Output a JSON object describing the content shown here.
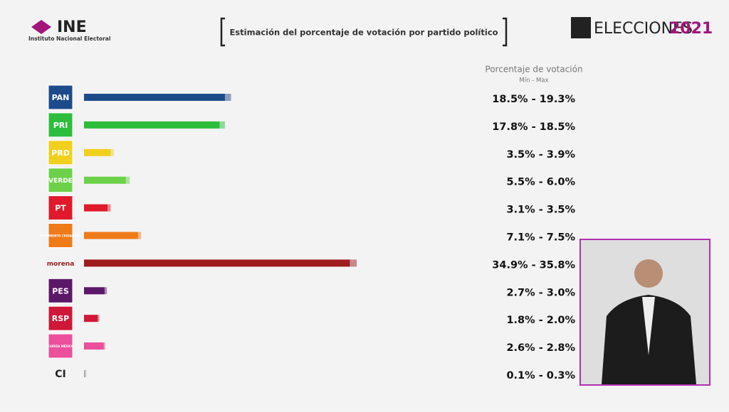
{
  "header": {
    "logo": "INE",
    "logo_subtitle": "Instituto Nacional Electoral",
    "brand": "ELECCIONES",
    "brand_year": "2021"
  },
  "chart_data": {
    "type": "range_bar",
    "title": "Estimación del porcentaje de votación por partido político",
    "column_title": "Porcentaje de votación",
    "column_subtitle": "Mín - Max",
    "categories": [
      "PAN",
      "PRI",
      "PRD",
      "VERDE",
      "PT",
      "MOVIMIENTO CIUDADANO",
      "morena",
      "PES",
      "RSP",
      "FUERZA MÉXICO",
      "CI"
    ],
    "colors": [
      "#1d4a8a",
      "#2dbd3c",
      "#f1d01c",
      "#6cd14a",
      "#e0192b",
      "#ef7a18",
      "#9e1b1e",
      "#5c1868",
      "#cf1737",
      "#ec4f9c",
      "#9a9a9a"
    ],
    "min": [
      18.5,
      17.8,
      3.5,
      5.5,
      3.1,
      7.1,
      34.9,
      2.7,
      1.8,
      2.6,
      0.1
    ],
    "max": [
      19.3,
      18.5,
      3.9,
      6.0,
      3.5,
      7.5,
      35.8,
      3.0,
      2.0,
      2.8,
      0.3
    ],
    "value_labels": [
      "18.5% - 19.3%",
      "17.8% - 18.5%",
      "3.5% - 3.9%",
      "5.5% - 6.0%",
      "3.1% - 3.5%",
      "7.1% - 7.5%",
      "34.9% - 35.8%",
      "2.7% - 3.0%",
      "1.8% - 2.0%",
      "2.6% - 2.8%",
      "0.1% - 0.3%"
    ]
  }
}
